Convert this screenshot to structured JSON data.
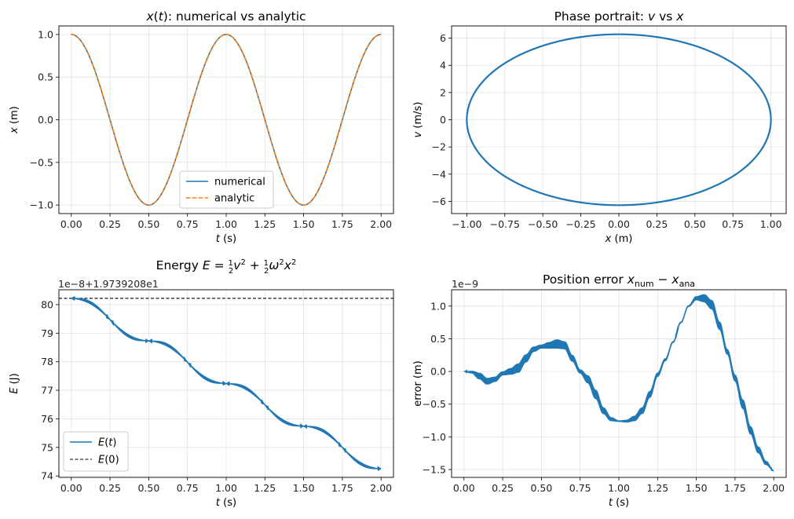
{
  "figure": {
    "title_tl": "x(t): numerical vs analytic",
    "title_tr": "Phase portrait: v vs x",
    "title_bl": "Energy E = ½v² + ½ω²x²",
    "title_br": "Position error x_num − x_ana"
  },
  "chart_data": [
    {
      "type": "line",
      "title": "x(t): numerical vs analytic",
      "xlabel": "t (s)",
      "ylabel": "x (m)",
      "xlim": [
        -0.08,
        2.08
      ],
      "ylim": [
        -1.1,
        1.1
      ],
      "xticks": [
        0.0,
        0.25,
        0.5,
        0.75,
        1.0,
        1.25,
        1.5,
        1.75,
        2.0
      ],
      "xticklabels": [
        "0.00",
        "0.25",
        "0.50",
        "0.75",
        "1.00",
        "1.25",
        "1.50",
        "1.75",
        "2.00"
      ],
      "yticks": [
        -1.0,
        -0.5,
        0.0,
        0.5,
        1.0
      ],
      "yticklabels": [
        "−1.0",
        "−0.5",
        "0.0",
        "0.5",
        "1.0"
      ],
      "grid": true,
      "legend": "lower center",
      "series": [
        {
          "name": "numerical",
          "color": "#1f77b4",
          "style": "solid",
          "function": "cos(2*pi*t)",
          "t_range": [
            0,
            2
          ]
        },
        {
          "name": "analytic",
          "color": "#ff7f0e",
          "style": "dashed",
          "function": "cos(2*pi*t)",
          "t_range": [
            0,
            2
          ]
        }
      ]
    },
    {
      "type": "line",
      "title": "Phase portrait: v vs x",
      "xlabel": "x (m)",
      "ylabel": "v (m/s)",
      "xlim": [
        -1.1,
        1.1
      ],
      "ylim": [
        -6.9,
        6.9
      ],
      "xticks": [
        -1.0,
        -0.75,
        -0.5,
        -0.25,
        0.0,
        0.25,
        0.5,
        0.75,
        1.0
      ],
      "xticklabels": [
        "−1.00",
        "−0.75",
        "−0.50",
        "−0.25",
        "0.00",
        "0.25",
        "0.50",
        "0.75",
        "1.00"
      ],
      "yticks": [
        -6,
        -4,
        -2,
        0,
        2,
        4,
        6
      ],
      "yticklabels": [
        "−6",
        "−4",
        "−2",
        "0",
        "2",
        "4",
        "6"
      ],
      "grid": true,
      "series": [
        {
          "color": "#1f77b4",
          "x_amplitude": 1.0,
          "v_amplitude": 6.283
        }
      ]
    },
    {
      "type": "line",
      "title": "Energy E = ½v² + ½ω²x²",
      "xlabel": "t (s)",
      "ylabel": "E (J)",
      "offset_text": "1e−8+1.9739208e1",
      "xlim": [
        -0.08,
        2.08
      ],
      "ylim": [
        73.95,
        80.52
      ],
      "xticks": [
        0.0,
        0.25,
        0.5,
        0.75,
        1.0,
        1.25,
        1.5,
        1.75,
        2.0
      ],
      "xticklabels": [
        "0.00",
        "0.25",
        "0.50",
        "0.75",
        "1.00",
        "1.25",
        "1.50",
        "1.75",
        "2.00"
      ],
      "yticks": [
        74,
        75,
        76,
        77,
        78,
        79,
        80
      ],
      "yticklabels": [
        "74",
        "75",
        "76",
        "77",
        "78",
        "79",
        "80"
      ],
      "grid": true,
      "legend": "lower left",
      "series": [
        {
          "name": "E(t)",
          "color": "#1f77b4",
          "style": "solid",
          "start": 80.22,
          "end": 74.25
        },
        {
          "name": "E(0)",
          "color": "#000000",
          "style": "dashed",
          "value": 80.22
        }
      ]
    },
    {
      "type": "line",
      "title": "Position error x_num − x_ana",
      "xlabel": "t (s)",
      "ylabel": "error (m)",
      "offset_text": "1e−9",
      "xlim": [
        -0.08,
        2.08
      ],
      "ylim": [
        -1.62,
        1.25
      ],
      "xticks": [
        0.0,
        0.25,
        0.5,
        0.75,
        1.0,
        1.25,
        1.5,
        1.75,
        2.0
      ],
      "xticklabels": [
        "0.00",
        "0.25",
        "0.50",
        "0.75",
        "1.00",
        "1.25",
        "1.50",
        "1.75",
        "2.00"
      ],
      "yticks": [
        -1.5,
        -1.0,
        -0.5,
        0.0,
        0.5,
        1.0
      ],
      "yticklabels": [
        "−1.5",
        "−1.0",
        "−0.5",
        "0.0",
        "0.5",
        "1.0"
      ],
      "grid": true,
      "series": [
        {
          "color": "#1f77b4",
          "t": [
            0.0,
            0.05,
            0.1,
            0.15,
            0.2,
            0.25,
            0.3,
            0.35,
            0.4,
            0.45,
            0.5,
            0.55,
            0.6,
            0.65,
            0.7,
            0.75,
            0.8,
            0.85,
            0.9,
            0.95,
            1.0,
            1.05,
            1.1,
            1.15,
            1.2,
            1.25,
            1.3,
            1.35,
            1.4,
            1.45,
            1.5,
            1.55,
            1.6,
            1.65,
            1.7,
            1.75,
            1.8,
            1.85,
            1.9,
            1.95,
            2.0
          ],
          "values": [
            0.0,
            -0.01,
            -0.07,
            -0.15,
            -0.12,
            -0.03,
            0.0,
            0.05,
            0.2,
            0.34,
            0.38,
            0.4,
            0.42,
            0.4,
            0.2,
            0.0,
            -0.12,
            -0.35,
            -0.6,
            -0.73,
            -0.76,
            -0.76,
            -0.72,
            -0.6,
            -0.35,
            -0.05,
            0.18,
            0.45,
            0.75,
            1.0,
            1.12,
            1.12,
            1.02,
            0.7,
            0.3,
            -0.1,
            -0.5,
            -0.9,
            -1.2,
            -1.4,
            -1.52
          ],
          "noise_amplitude": [
            0.0,
            0.02,
            0.05,
            0.05,
            0.04,
            0.03,
            0.05,
            0.07,
            0.06,
            0.04,
            0.03,
            0.05,
            0.07,
            0.06,
            0.05,
            0.03,
            0.06,
            0.07,
            0.05,
            0.03,
            0.01,
            0.02,
            0.04,
            0.05,
            0.05,
            0.03,
            0.02,
            0.01,
            0.01,
            0.01,
            0.03,
            0.06,
            0.07,
            0.06,
            0.04,
            0.05,
            0.07,
            0.06,
            0.05,
            0.03,
            0.0
          ]
        }
      ]
    }
  ]
}
